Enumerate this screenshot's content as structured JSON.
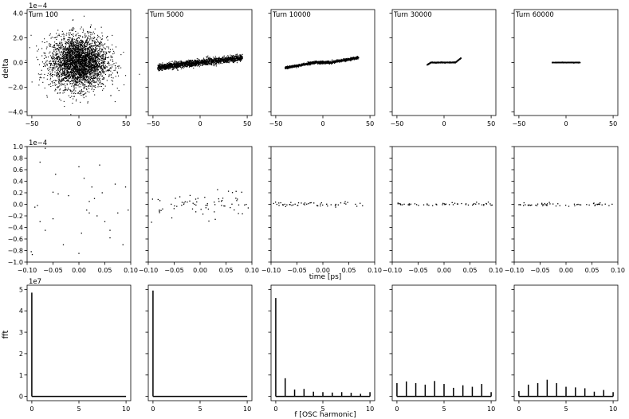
{
  "figure": {
    "col_titles": [
      "Turn 100",
      "Turn 5000",
      "Turn 10000",
      "Turn 30000",
      "Turn 60000"
    ],
    "row_ylabels": [
      "delta",
      "",
      "fft"
    ],
    "row_xlabels": [
      "",
      "time [ps]",
      "f [OSC harmonic]"
    ],
    "row_offsets": [
      "1e−4",
      "1e−4",
      "1e7"
    ]
  },
  "chart_data": [
    {
      "row": 0,
      "type": "scatter",
      "xlim": [
        -55,
        55
      ],
      "ylim": [
        -4.3,
        4.3
      ],
      "xticks": [
        -50,
        0,
        50
      ],
      "xticklabels": [
        "−50",
        "0",
        "50"
      ],
      "yticks": [
        -4,
        -2,
        0,
        2,
        4
      ],
      "yticklabels": [
        "−4.0",
        "−2.0",
        "0.0",
        "2.0",
        "4.0"
      ],
      "scale_note": "1e−4",
      "panels": [
        {
          "title": "Turn 100",
          "pattern": "gaussian_blob",
          "sx": 15,
          "sy": 1.05
        },
        {
          "title": "Turn 5000",
          "pattern": "tilted_band",
          "x_range": [
            -45,
            45
          ],
          "slope": 0.0085,
          "spread": 0.13
        },
        {
          "title": "Turn 10000",
          "pattern": "s_curve",
          "x_range": [
            -40,
            38
          ],
          "amplitude": 0.45
        },
        {
          "title": "Turn 30000",
          "pattern": "short_flat",
          "x_range": [
            -18,
            18
          ]
        },
        {
          "title": "Turn 60000",
          "pattern": "flat_line",
          "x_range": [
            -15,
            15
          ]
        }
      ]
    },
    {
      "row": 1,
      "type": "scatter",
      "xlim": [
        -0.1,
        0.1
      ],
      "ylim": [
        -1.0,
        1.0
      ],
      "xticks": [
        -0.1,
        -0.05,
        0.0,
        0.05,
        0.1
      ],
      "xticklabels": [
        "−0.10",
        "−0.05",
        "0.00",
        "0.05",
        "0.10"
      ],
      "yticks": [
        -1.0,
        -0.8,
        -0.6,
        -0.4,
        -0.2,
        0.0,
        0.2,
        0.4,
        0.6,
        0.8,
        1.0
      ],
      "yticklabels": [
        "−1.0",
        "−0.8",
        "−0.6",
        "−0.4",
        "−0.2",
        "0.0",
        "0.2",
        "0.4",
        "0.6",
        "0.8",
        "1.0"
      ],
      "xlabel": "time [ps]",
      "scale_note": "1e−4",
      "panels": [
        {
          "title": "Turn 100",
          "points": [
            [
              -0.065,
              0.97
            ],
            [
              -0.075,
              0.73
            ],
            [
              -0.045,
              0.52
            ],
            [
              -0.04,
              0.18
            ],
            [
              -0.05,
              0.21
            ],
            [
              -0.085,
              -0.05
            ],
            [
              -0.08,
              -0.02
            ],
            [
              -0.09,
              -0.87
            ],
            [
              -0.092,
              -0.82
            ],
            [
              -0.075,
              -0.3
            ],
            [
              -0.065,
              -0.45
            ],
            [
              -0.05,
              -0.25
            ],
            [
              0.0,
              0.65
            ],
            [
              0.01,
              0.45
            ],
            [
              0.02,
              -0.15
            ],
            [
              0.015,
              -0.1
            ],
            [
              0.005,
              -0.5
            ],
            [
              0.0,
              -0.85
            ],
            [
              0.02,
              0.05
            ],
            [
              0.03,
              0.1
            ],
            [
              0.035,
              -0.2
            ],
            [
              0.04,
              0.68
            ],
            [
              0.045,
              0.2
            ],
            [
              0.05,
              -0.3
            ],
            [
              0.06,
              -0.45
            ],
            [
              0.07,
              0.35
            ],
            [
              0.075,
              -0.15
            ],
            [
              0.085,
              -0.7
            ],
            [
              0.09,
              0.3
            ],
            [
              0.095,
              -0.1
            ],
            [
              0.025,
              0.3
            ],
            [
              -0.03,
              -0.7
            ],
            [
              0.06,
              -0.58
            ],
            [
              -0.02,
              0.15
            ]
          ]
        },
        {
          "title": "Turn 5000",
          "pattern": "band",
          "spread": 0.12,
          "count": 70
        },
        {
          "title": "Turn 10000",
          "pattern": "band",
          "spread": 0.02,
          "count": 55
        },
        {
          "title": "Turn 30000",
          "pattern": "band",
          "spread": 0.015,
          "count": 55
        },
        {
          "title": "Turn 60000",
          "pattern": "band",
          "spread": 0.015,
          "count": 55
        }
      ]
    },
    {
      "row": 2,
      "type": "bar",
      "xlim": [
        -0.5,
        10.5
      ],
      "ylim": [
        -0.2,
        5.2
      ],
      "xticks": [
        0,
        5,
        10
      ],
      "xticklabels": [
        "0",
        "5",
        "10"
      ],
      "yticks": [
        0,
        1,
        2,
        3,
        4,
        5
      ],
      "yticklabels": [
        "0",
        "1",
        "2",
        "3",
        "4",
        "5"
      ],
      "xlabel": "f [OSC harmonic]",
      "ylabel": "fft",
      "scale_note": "1e7",
      "panels": [
        {
          "title": "Turn 100",
          "values": [
            4.85,
            0,
            0,
            0,
            0,
            0,
            0,
            0,
            0,
            0,
            0
          ]
        },
        {
          "title": "Turn 5000",
          "values": [
            4.95,
            0,
            0,
            0,
            0,
            0,
            0,
            0,
            0,
            0,
            0
          ]
        },
        {
          "title": "Turn 10000",
          "values": [
            4.6,
            0.85,
            0.32,
            0.35,
            0.22,
            0.2,
            0.18,
            0.2,
            0.17,
            0.12,
            0.2
          ]
        },
        {
          "title": "Turn 30000",
          "values": [
            0.62,
            0.7,
            0.62,
            0.55,
            0.72,
            0.58,
            0.4,
            0.52,
            0.45,
            0.58,
            0.2
          ]
        },
        {
          "title": "Turn 60000",
          "values": [
            0.25,
            0.55,
            0.62,
            0.78,
            0.62,
            0.45,
            0.42,
            0.38,
            0.22,
            0.3,
            0.2
          ]
        }
      ]
    }
  ]
}
